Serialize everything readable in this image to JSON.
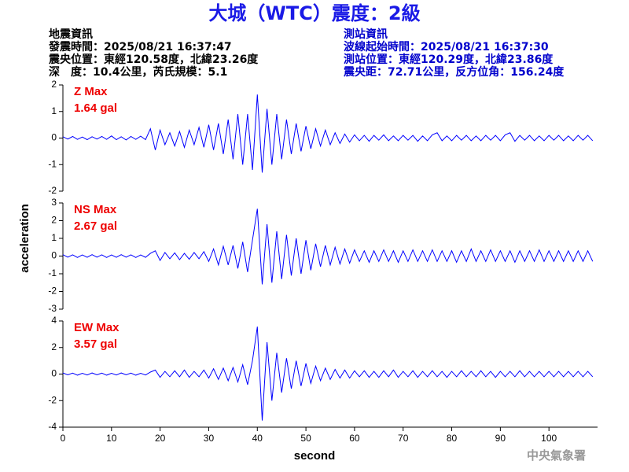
{
  "header": {
    "title": "大城（WTC）震度：2級",
    "quake_info": [
      "地震資訊",
      "發震時間：2025/08/21 16:37:47",
      "震央位置：東經120.58度，北緯23.26度",
      "深　度：10.4公里，芮氏規模：5.1"
    ],
    "station_info": [
      "測站資訊",
      "波線起始時間：2025/08/21 16:37:30",
      "測站位置：東經120.29度，北緯23.86度",
      "震央距：72.71公里，反方位角：156.24度"
    ],
    "y_label": "acceleration",
    "footer": "中央氣象署"
  },
  "chart_data": [
    {
      "type": "line",
      "label": "Z Max",
      "max_label": "1.64 gal",
      "xlim": [
        0,
        110
      ],
      "ylim": [
        -2,
        2
      ],
      "yticks": [
        -2,
        -1,
        0,
        1,
        2
      ],
      "x": [
        0,
        1,
        2,
        3,
        4,
        5,
        6,
        7,
        8,
        9,
        10,
        11,
        12,
        13,
        14,
        15,
        16,
        17,
        18,
        19,
        20,
        21,
        22,
        23,
        24,
        25,
        26,
        27,
        28,
        29,
        30,
        31,
        32,
        33,
        34,
        35,
        36,
        37,
        38,
        39,
        40,
        41,
        42,
        43,
        44,
        45,
        46,
        47,
        48,
        49,
        50,
        51,
        52,
        53,
        54,
        55,
        56,
        57,
        58,
        59,
        60,
        61,
        62,
        63,
        64,
        65,
        66,
        67,
        68,
        69,
        70,
        71,
        72,
        73,
        74,
        75,
        76,
        77,
        78,
        79,
        80,
        81,
        82,
        83,
        84,
        85,
        86,
        87,
        88,
        89,
        90,
        91,
        92,
        93,
        94,
        95,
        96,
        97,
        98,
        99,
        100,
        101,
        102,
        103,
        104,
        105,
        106,
        107,
        108,
        109
      ],
      "series": [
        {
          "color": "#0000ff",
          "values": [
            0.05,
            -0.04,
            0.06,
            -0.05,
            0.04,
            -0.06,
            0.05,
            -0.04,
            0.06,
            -0.05,
            0.08,
            -0.06,
            0.05,
            -0.07,
            0.06,
            -0.05,
            0.07,
            -0.06,
            0.35,
            -0.45,
            0.3,
            -0.25,
            0.2,
            -0.3,
            0.25,
            -0.35,
            0.3,
            -0.25,
            0.4,
            -0.35,
            0.5,
            -0.45,
            0.55,
            -0.6,
            0.7,
            -0.8,
            0.9,
            -1.0,
            0.9,
            -1.2,
            1.64,
            -1.3,
            1.1,
            -1.0,
            0.9,
            -0.8,
            0.7,
            -0.6,
            0.55,
            -0.5,
            0.45,
            -0.4,
            0.35,
            -0.3,
            0.3,
            -0.25,
            0.2,
            -0.2,
            0.15,
            -0.15,
            0.12,
            -0.1,
            0.1,
            -0.12,
            0.1,
            -0.08,
            0.12,
            -0.1,
            0.08,
            -0.1,
            0.1,
            -0.08,
            0.1,
            -0.12,
            0.08,
            -0.1,
            0.12,
            0.2,
            -0.1,
            0.08,
            -0.1,
            0.1,
            -0.08,
            0.1,
            -0.1,
            0.08,
            -0.1,
            0.1,
            -0.08,
            0.1,
            -0.1,
            0.12,
            0.2,
            -0.12,
            0.1,
            -0.08,
            0.1,
            -0.1,
            0.08,
            -0.1,
            0.1,
            -0.08,
            0.1,
            -0.1,
            0.08,
            -0.1,
            0.1,
            -0.08,
            0.1,
            -0.1
          ]
        }
      ]
    },
    {
      "type": "line",
      "label": "NS Max",
      "max_label": "2.67 gal",
      "xlim": [
        0,
        110
      ],
      "ylim": [
        -3,
        3
      ],
      "yticks": [
        -3,
        -2,
        -1,
        0,
        1,
        2,
        3
      ],
      "x": [
        0,
        1,
        2,
        3,
        4,
        5,
        6,
        7,
        8,
        9,
        10,
        11,
        12,
        13,
        14,
        15,
        16,
        17,
        18,
        19,
        20,
        21,
        22,
        23,
        24,
        25,
        26,
        27,
        28,
        29,
        30,
        31,
        32,
        33,
        34,
        35,
        36,
        37,
        38,
        39,
        40,
        41,
        42,
        43,
        44,
        45,
        46,
        47,
        48,
        49,
        50,
        51,
        52,
        53,
        54,
        55,
        56,
        57,
        58,
        59,
        60,
        61,
        62,
        63,
        64,
        65,
        66,
        67,
        68,
        69,
        70,
        71,
        72,
        73,
        74,
        75,
        76,
        77,
        78,
        79,
        80,
        81,
        82,
        83,
        84,
        85,
        86,
        87,
        88,
        89,
        90,
        91,
        92,
        93,
        94,
        95,
        96,
        97,
        98,
        99,
        100,
        101,
        102,
        103,
        104,
        105,
        106,
        107,
        108,
        109
      ],
      "series": [
        {
          "color": "#0000ff",
          "values": [
            0.08,
            -0.06,
            0.07,
            -0.08,
            0.06,
            -0.07,
            0.08,
            -0.06,
            0.07,
            -0.08,
            0.06,
            -0.07,
            0.08,
            -0.06,
            0.07,
            -0.08,
            0.06,
            -0.07,
            0.15,
            0.3,
            -0.25,
            0.2,
            -0.15,
            0.18,
            -0.2,
            0.15,
            -0.18,
            0.2,
            -0.15,
            0.25,
            -0.3,
            0.4,
            -0.5,
            0.55,
            -0.5,
            0.6,
            -0.7,
            0.8,
            -0.9,
            0.9,
            2.67,
            -1.6,
            1.8,
            -1.5,
            1.4,
            -1.3,
            1.2,
            -1.1,
            1.0,
            -1.0,
            0.9,
            -0.8,
            0.7,
            -0.6,
            0.6,
            -0.5,
            0.5,
            -0.45,
            0.4,
            -0.4,
            0.35,
            -0.3,
            0.3,
            -0.35,
            0.3,
            -0.3,
            0.35,
            -0.3,
            0.3,
            -0.35,
            0.3,
            -0.3,
            0.35,
            -0.3,
            0.3,
            -0.3,
            0.35,
            -0.3,
            0.3,
            -0.3,
            0.3,
            -0.35,
            0.3,
            -0.3,
            0.4,
            -0.3,
            0.3,
            -0.3,
            0.35,
            -0.3,
            0.3,
            -0.3,
            0.3,
            -0.35,
            0.3,
            -0.3,
            0.3,
            -0.3,
            0.35,
            -0.3,
            0.3,
            -0.3,
            0.3,
            -0.3,
            0.3,
            -0.3,
            0.3,
            -0.3,
            0.3,
            -0.3
          ]
        }
      ]
    },
    {
      "type": "line",
      "label": "EW Max",
      "max_label": "3.57 gal",
      "xlim": [
        0,
        110
      ],
      "ylim": [
        -4,
        4
      ],
      "yticks": [
        -4,
        -2,
        0,
        2,
        4
      ],
      "xticks": [
        0,
        10,
        20,
        30,
        40,
        50,
        60,
        70,
        80,
        90,
        100
      ],
      "xlabel": "second",
      "x": [
        0,
        1,
        2,
        3,
        4,
        5,
        6,
        7,
        8,
        9,
        10,
        11,
        12,
        13,
        14,
        15,
        16,
        17,
        18,
        19,
        20,
        21,
        22,
        23,
        24,
        25,
        26,
        27,
        28,
        29,
        30,
        31,
        32,
        33,
        34,
        35,
        36,
        37,
        38,
        39,
        40,
        41,
        42,
        43,
        44,
        45,
        46,
        47,
        48,
        49,
        50,
        51,
        52,
        53,
        54,
        55,
        56,
        57,
        58,
        59,
        60,
        61,
        62,
        63,
        64,
        65,
        66,
        67,
        68,
        69,
        70,
        71,
        72,
        73,
        74,
        75,
        76,
        77,
        78,
        79,
        80,
        81,
        82,
        83,
        84,
        85,
        86,
        87,
        88,
        89,
        90,
        91,
        92,
        93,
        94,
        95,
        96,
        97,
        98,
        99,
        100,
        101,
        102,
        103,
        104,
        105,
        106,
        107,
        108,
        109
      ],
      "series": [
        {
          "color": "#0000ff",
          "values": [
            0.08,
            -0.06,
            0.07,
            -0.08,
            0.06,
            -0.07,
            0.08,
            -0.06,
            0.07,
            -0.08,
            0.06,
            -0.07,
            0.08,
            -0.06,
            0.07,
            -0.08,
            0.06,
            -0.07,
            0.15,
            0.3,
            -0.25,
            0.2,
            -0.2,
            0.25,
            -0.2,
            0.3,
            -0.25,
            0.2,
            -0.2,
            0.3,
            -0.3,
            0.4,
            -0.4,
            0.45,
            -0.5,
            0.5,
            -0.6,
            0.7,
            -0.8,
            1.0,
            3.57,
            -3.5,
            2.4,
            -2.0,
            1.6,
            -1.4,
            1.2,
            -1.1,
            1.0,
            -0.9,
            0.8,
            -0.7,
            0.6,
            -0.5,
            0.45,
            -0.4,
            0.35,
            -0.3,
            0.3,
            -0.3,
            0.25,
            -0.2,
            0.25,
            -0.25,
            0.2,
            -0.25,
            0.25,
            -0.2,
            0.3,
            -0.25,
            0.2,
            -0.2,
            0.25,
            -0.25,
            0.2,
            -0.2,
            0.25,
            -0.2,
            0.2,
            -0.25,
            0.2,
            -0.2,
            0.25,
            -0.2,
            0.2,
            -0.2,
            0.25,
            -0.2,
            0.2,
            -0.25,
            0.2,
            -0.2,
            0.2,
            -0.2,
            0.25,
            -0.2,
            0.2,
            -0.2,
            0.2,
            -0.2,
            0.2,
            -0.2,
            0.2,
            -0.2,
            0.2,
            -0.2,
            0.2,
            -0.2,
            0.2,
            -0.2
          ]
        }
      ]
    }
  ]
}
